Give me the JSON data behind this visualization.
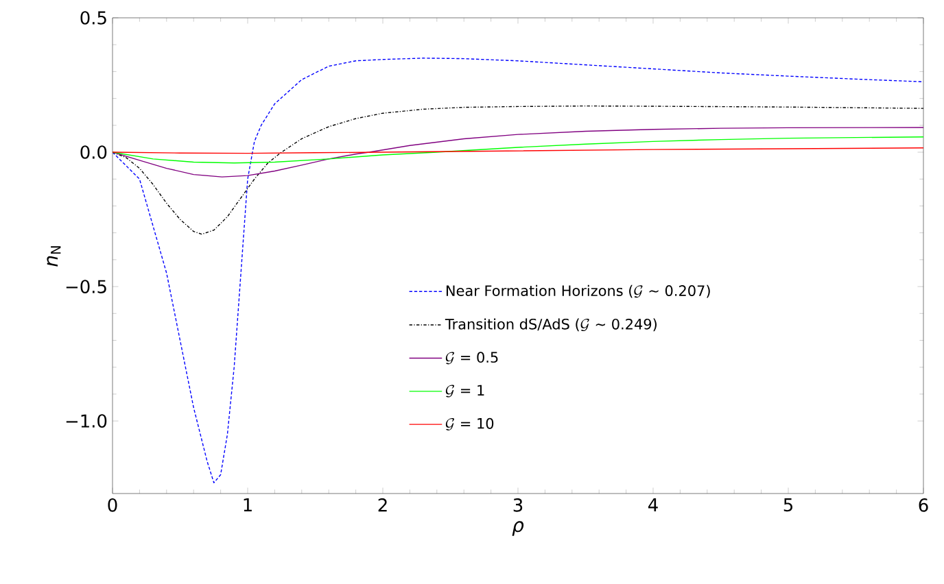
{
  "chart_data": {
    "type": "line",
    "xlabel": "*ρ*",
    "ylabel": "*n*$_{N}$",
    "xlim": [
      0,
      6
    ],
    "ylim": [
      -1.27,
      0.5
    ],
    "xticks": [
      0,
      1,
      2,
      3,
      4,
      5,
      6
    ],
    "yticks": [
      {
        "value": -1.0,
        "label": "−1.0"
      },
      {
        "value": -0.5,
        "label": "−0.5"
      },
      {
        "value": 0.0,
        "label": "0.0"
      },
      {
        "value": 0.5,
        "label": "0.5"
      }
    ],
    "grid": false,
    "legend": "right",
    "marker": "none",
    "series": [
      {
        "name": "\\text{Near Formation Horizons (}\\mathcal{G}\\text{ \\textasciitilde{} 0.207)}",
        "color": "#0000ff",
        "line_style": "dashed",
        "x": [
          0,
          0.2,
          0.4,
          0.6,
          0.7,
          0.75,
          0.8,
          0.85,
          0.9,
          0.95,
          1.0,
          1.05,
          1.1,
          1.2,
          1.4,
          1.6,
          1.8,
          2.0,
          2.3,
          2.6,
          3,
          3.5,
          4,
          4.5,
          5,
          5.5,
          6
        ],
        "values": [
          0,
          -0.1,
          -0.45,
          -0.95,
          -1.15,
          -1.23,
          -1.2,
          -1.05,
          -0.8,
          -0.45,
          -0.1,
          0.04,
          0.1,
          0.18,
          0.27,
          0.32,
          0.34,
          0.345,
          0.35,
          0.348,
          0.34,
          0.325,
          0.31,
          0.295,
          0.283,
          0.272,
          0.262
        ]
      },
      {
        "name": "\\text{Transition dS/AdS (}\\mathcal{G}\\text{ \\textasciitilde{} 0.249)}",
        "color": "#000000",
        "line_style": "dashdot",
        "x": [
          0,
          0.1,
          0.2,
          0.3,
          0.4,
          0.5,
          0.6,
          0.66,
          0.75,
          0.85,
          0.95,
          1.05,
          1.15,
          1.25,
          1.4,
          1.6,
          1.8,
          2.0,
          2.3,
          2.6,
          3,
          3.5,
          4,
          5,
          6
        ],
        "values": [
          0,
          -0.02,
          -0.06,
          -0.12,
          -0.19,
          -0.25,
          -0.295,
          -0.305,
          -0.29,
          -0.24,
          -0.17,
          -0.1,
          -0.04,
          0.0,
          0.05,
          0.095,
          0.125,
          0.145,
          0.16,
          0.167,
          0.17,
          0.172,
          0.171,
          0.168,
          0.163
        ]
      },
      {
        "name": "\\mathcal{G}\\text{ = 0.5}",
        "color": "#800080",
        "line_style": "solid",
        "x": [
          0,
          0.2,
          0.4,
          0.6,
          0.81,
          1.0,
          1.2,
          1.4,
          1.6,
          1.8,
          1.9,
          2.2,
          2.6,
          3,
          3.5,
          4,
          4.5,
          5,
          6
        ],
        "values": [
          0,
          -0.03,
          -0.06,
          -0.083,
          -0.092,
          -0.087,
          -0.07,
          -0.048,
          -0.025,
          -0.007,
          0.0,
          0.025,
          0.05,
          0.066,
          0.078,
          0.085,
          0.089,
          0.091,
          0.092
        ]
      },
      {
        "name": "\\mathcal{G}\\text{ = 1}",
        "color": "#00ff00",
        "line_style": "solid",
        "x": [
          0,
          0.3,
          0.6,
          0.9,
          1.2,
          1.6,
          2.0,
          2.4,
          3,
          3.5,
          4,
          4.5,
          5,
          6
        ],
        "values": [
          0,
          -0.025,
          -0.037,
          -0.04,
          -0.037,
          -0.025,
          -0.01,
          0.0,
          0.018,
          0.03,
          0.04,
          0.047,
          0.052,
          0.057
        ]
      },
      {
        "name": "\\mathcal{G}\\text{ = 10}",
        "color": "#ff0000",
        "line_style": "solid",
        "x": [
          0,
          0.5,
          1,
          1.5,
          2,
          3,
          4,
          5,
          6
        ],
        "values": [
          0,
          -0.003,
          -0.004,
          -0.002,
          0.0,
          0.005,
          0.01,
          0.013,
          0.016
        ]
      }
    ]
  }
}
